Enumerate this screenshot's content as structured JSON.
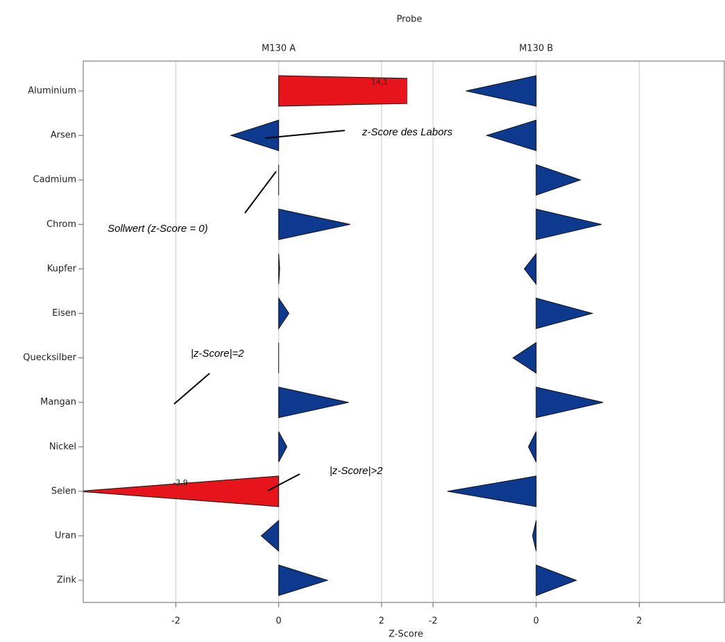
{
  "chart_data": {
    "type": "triangle",
    "title": "Probe",
    "x_label": "Z-Score",
    "categories": [
      "Aluminium",
      "Arsen",
      "Cadmium",
      "Chrom",
      "Kupfer",
      "Eisen",
      "Quecksilber",
      "Mangan",
      "Nickel",
      "Selen",
      "Uran",
      "Zink"
    ],
    "panels": [
      {
        "title": "M130 A",
        "xlim": [
          -3.8,
          2.5
        ],
        "xticks": [
          -2,
          0,
          2
        ],
        "values": [
          14.1,
          -0.93,
          0,
          1.39,
          0.02,
          0.2,
          0,
          1.36,
          0.16,
          -3.9,
          -0.34,
          0.95
        ],
        "value_labels": [
          "14,1",
          null,
          null,
          null,
          null,
          null,
          null,
          null,
          null,
          "-3,9",
          null,
          null
        ],
        "colors": [
          "#e8141c",
          "#0d3a8f",
          "#0d3a8f",
          "#0d3a8f",
          "#0d3a8f",
          "#0d3a8f",
          "#0d3a8f",
          "#0d3a8f",
          "#0d3a8f",
          "#e8141c",
          "#0d3a8f",
          "#0d3a8f"
        ]
      },
      {
        "title": "M130 B",
        "xlim": [
          -2.5,
          3.65
        ],
        "xticks": [
          -2,
          0,
          2
        ],
        "values": [
          -1.36,
          -0.96,
          0.86,
          1.27,
          -0.23,
          1.09,
          -0.45,
          1.3,
          -0.15,
          -1.72,
          -0.07,
          0.78
        ],
        "colors": [
          "#0d3a8f",
          "#0d3a8f",
          "#0d3a8f",
          "#0d3a8f",
          "#0d3a8f",
          "#0d3a8f",
          "#0d3a8f",
          "#0d3a8f",
          "#0d3a8f",
          "#0d3a8f",
          "#0d3a8f",
          "#0d3a8f"
        ]
      }
    ],
    "grid": true,
    "annotations": [
      "z-Score des Labors",
      "Sollwert (z-Score = 0)",
      "|z-Score|=2",
      "|z-Score|>2"
    ]
  }
}
